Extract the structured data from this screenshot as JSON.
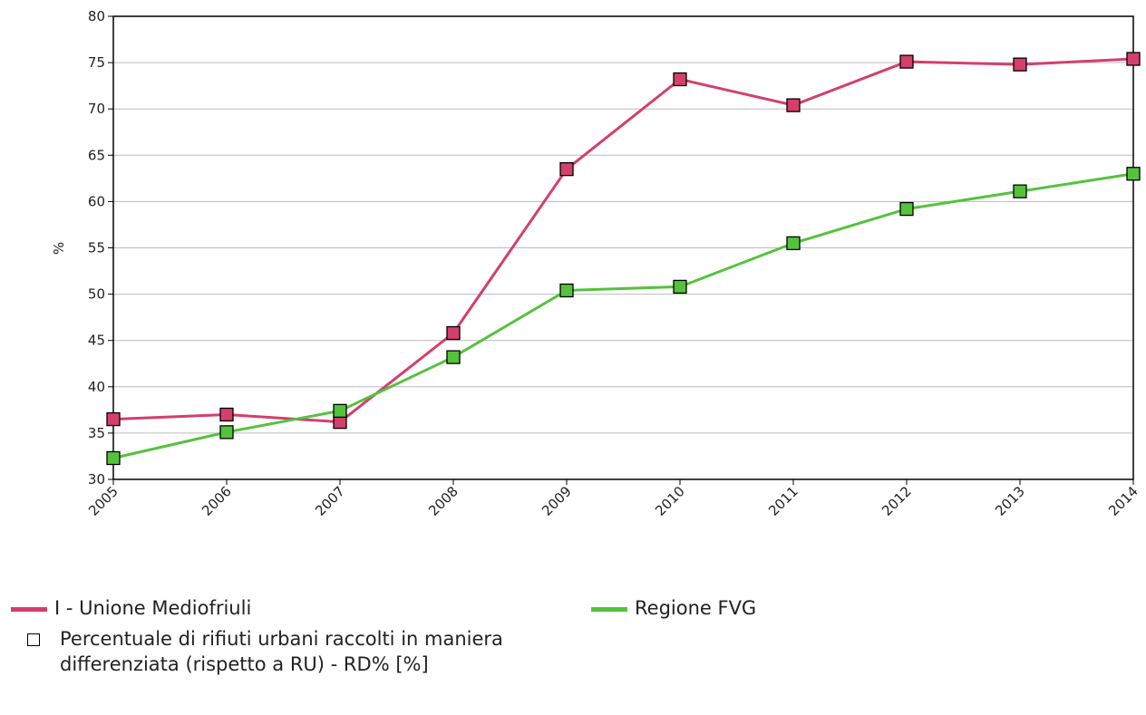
{
  "chart_data": {
    "type": "line",
    "y_label": "%",
    "categories": [
      "2005",
      "2006",
      "2007",
      "2008",
      "2009",
      "2010",
      "2011",
      "2012",
      "2013",
      "2014"
    ],
    "series": [
      {
        "name": "I - Unione Mediofriuli",
        "color": "#d43f6c",
        "values": [
          36.5,
          37.0,
          36.2,
          45.8,
          63.5,
          73.2,
          70.4,
          75.1,
          74.8,
          75.4
        ]
      },
      {
        "name": "Regione FVG",
        "color": "#55c23d",
        "values": [
          32.3,
          35.1,
          37.4,
          43.2,
          50.4,
          50.8,
          55.5,
          59.2,
          61.1,
          63.0
        ]
      }
    ],
    "marker_legend": "Percentuale di rifiuti urbani raccolti in maniera differenziata (rispetto a RU) - RD% [%]",
    "ylim": [
      30,
      80
    ],
    "yticks": [
      30,
      35,
      40,
      45,
      50,
      55,
      60,
      65,
      70,
      75,
      80
    ],
    "grid": true
  }
}
